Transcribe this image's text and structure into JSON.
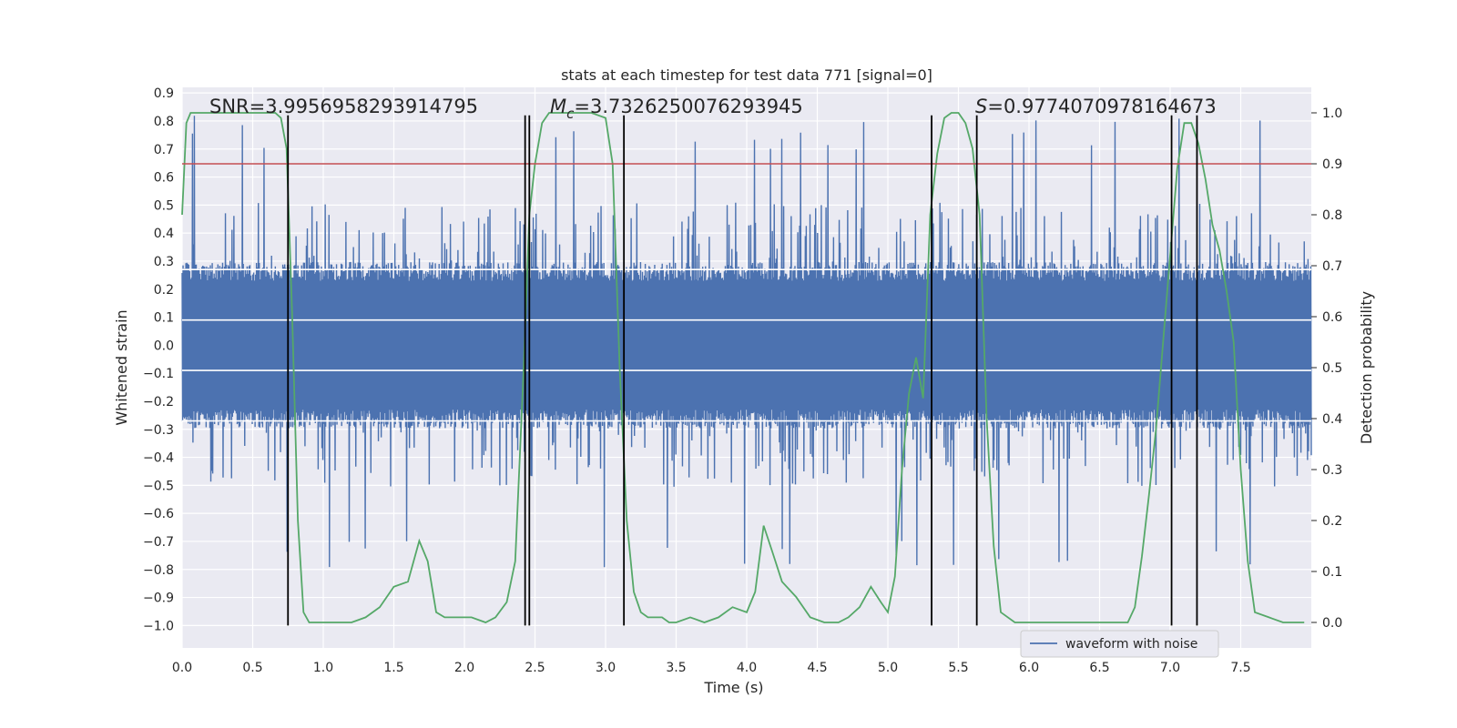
{
  "chart_data": {
    "type": "line",
    "title": "stats at each timestep for test data 771 [signal=0]",
    "xlabel": "Time (s)",
    "ylabel": "Whitened strain",
    "y2label": "Detection probability",
    "xlim": [
      0,
      8
    ],
    "ylim": [
      -1.08,
      0.92
    ],
    "y2lim": [
      -0.05,
      1.05
    ],
    "xticks": [
      "0.0",
      "0.5",
      "1.0",
      "1.5",
      "2.0",
      "2.5",
      "3.0",
      "3.5",
      "4.0",
      "4.5",
      "5.0",
      "5.5",
      "6.0",
      "6.5",
      "7.0",
      "7.5"
    ],
    "yticks": [
      "0.9",
      "0.8",
      "0.7",
      "0.6",
      "0.5",
      "0.4",
      "0.3",
      "0.2",
      "0.1",
      "0.0",
      "−0.1",
      "−0.2",
      "−0.3",
      "−0.4",
      "−0.5",
      "−0.6",
      "−0.7",
      "−0.8",
      "−0.9",
      "−1.0"
    ],
    "y2ticks": [
      "1.0",
      "0.9",
      "0.8",
      "0.7",
      "0.6",
      "0.5",
      "0.4",
      "0.3",
      "0.2",
      "0.1",
      "0.0"
    ],
    "grid": true,
    "legend_position": "bottom-right",
    "annotations": {
      "snr": "SNR=3.9956958293914795",
      "mc_symbol": "M",
      "mc_sub": "c",
      "mc_value": "=3.7326250076293945",
      "s_symbol": "S",
      "s_value": "=0.9774070978164673"
    },
    "threshold": 0.9,
    "vertical_lines": [
      0.75,
      2.43,
      2.46,
      3.13,
      5.31,
      5.63,
      7.01,
      7.19
    ],
    "vertical_lines_range": [
      -1.0,
      0.82
    ],
    "series": [
      {
        "name": "waveform with noise",
        "kind": "noise",
        "core_amplitude": 0.27,
        "max_amplitude": 0.82,
        "min_amplitude": -0.81
      },
      {
        "kind": "probability",
        "x": [
          0.0,
          0.03,
          0.06,
          0.1,
          0.15,
          0.2,
          0.3,
          0.4,
          0.5,
          0.6,
          0.66,
          0.7,
          0.74,
          0.78,
          0.82,
          0.86,
          0.9,
          0.95,
          1.0,
          1.1,
          1.2,
          1.3,
          1.4,
          1.5,
          1.6,
          1.68,
          1.74,
          1.8,
          1.86,
          1.95,
          2.05,
          2.15,
          2.22,
          2.3,
          2.36,
          2.42,
          2.46,
          2.5,
          2.55,
          2.6,
          2.7,
          2.8,
          2.9,
          3.0,
          3.05,
          3.1,
          3.15,
          3.2,
          3.25,
          3.3,
          3.35,
          3.4,
          3.45,
          3.5,
          3.6,
          3.7,
          3.8,
          3.9,
          4.0,
          4.06,
          4.12,
          4.18,
          4.25,
          4.35,
          4.45,
          4.55,
          4.65,
          4.72,
          4.8,
          4.88,
          4.95,
          5.0,
          5.05,
          5.1,
          5.15,
          5.2,
          5.25,
          5.3,
          5.35,
          5.4,
          5.45,
          5.5,
          5.55,
          5.6,
          5.65,
          5.7,
          5.75,
          5.8,
          5.9,
          6.0,
          6.1,
          6.2,
          6.3,
          6.4,
          6.5,
          6.6,
          6.65,
          6.7,
          6.75,
          6.8,
          6.85,
          6.9,
          6.95,
          7.0,
          7.05,
          7.1,
          7.15,
          7.2,
          7.25,
          7.3,
          7.35,
          7.4,
          7.45,
          7.5,
          7.55,
          7.6,
          7.7,
          7.8,
          7.9,
          7.95
        ],
        "y": [
          0.8,
          0.98,
          1.0,
          1.0,
          1.0,
          1.0,
          1.0,
          1.0,
          1.0,
          1.0,
          1.0,
          0.99,
          0.93,
          0.6,
          0.2,
          0.02,
          0.0,
          0.0,
          0.0,
          0.0,
          0.0,
          0.01,
          0.03,
          0.07,
          0.08,
          0.16,
          0.12,
          0.02,
          0.01,
          0.01,
          0.01,
          0.0,
          0.01,
          0.04,
          0.12,
          0.5,
          0.8,
          0.9,
          0.98,
          1.0,
          1.0,
          1.0,
          1.0,
          0.99,
          0.9,
          0.5,
          0.2,
          0.06,
          0.02,
          0.01,
          0.01,
          0.01,
          0.0,
          0.0,
          0.01,
          0.0,
          0.01,
          0.03,
          0.02,
          0.06,
          0.19,
          0.14,
          0.08,
          0.05,
          0.01,
          0.0,
          0.0,
          0.01,
          0.03,
          0.07,
          0.04,
          0.02,
          0.09,
          0.3,
          0.45,
          0.52,
          0.44,
          0.8,
          0.92,
          0.99,
          1.0,
          1.0,
          0.98,
          0.93,
          0.8,
          0.4,
          0.15,
          0.02,
          0.0,
          0.0,
          0.0,
          0.0,
          0.0,
          0.0,
          0.0,
          0.0,
          0.0,
          0.0,
          0.03,
          0.13,
          0.25,
          0.38,
          0.55,
          0.72,
          0.89,
          0.98,
          0.98,
          0.94,
          0.87,
          0.78,
          0.73,
          0.65,
          0.55,
          0.3,
          0.12,
          0.02,
          0.01,
          0.0,
          0.0,
          0.0
        ]
      }
    ]
  }
}
